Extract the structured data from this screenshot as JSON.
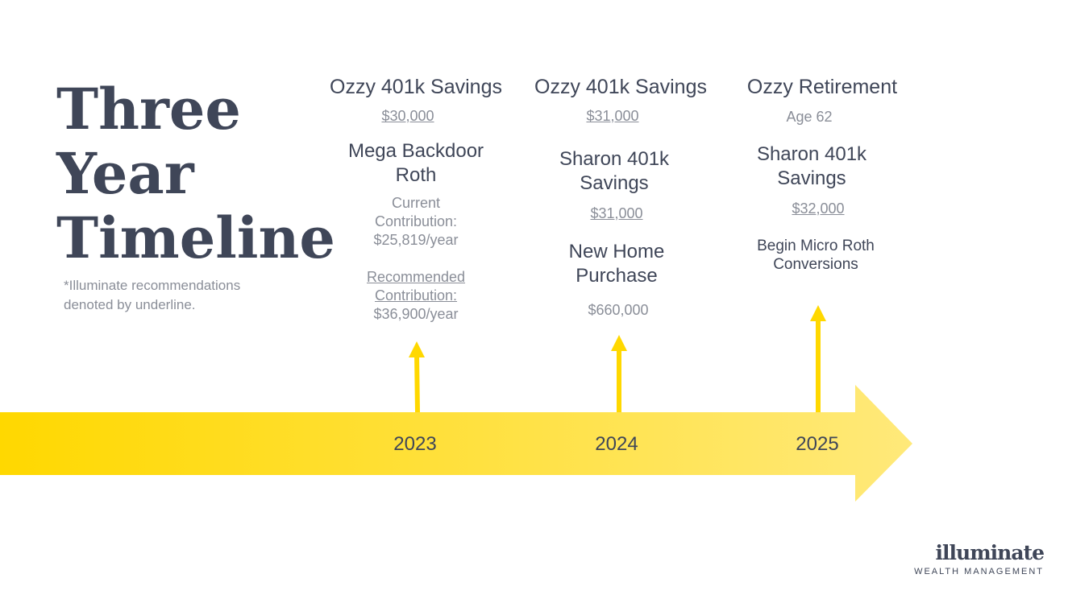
{
  "title": [
    "Three",
    "Year",
    "Timeline"
  ],
  "note": "*Illuminate recommendations denoted by underline.",
  "colors": {
    "accent": "#FFD800",
    "text": "#3F4658",
    "muted": "#8A8E98"
  },
  "columns": [
    {
      "year": "2023",
      "top_heading": "Ozzy 401k Savings",
      "top_value": "$30,000",
      "mid_heading": "Mega Backdoor Roth",
      "current_label": "Current Contribution:",
      "current_value": "$25,819/year",
      "recommended_label": "Recommended Contribution:",
      "recommended_value": "$36,900/year"
    },
    {
      "year": "2024",
      "top_heading": "Ozzy 401k Savings",
      "top_value": "$31,000",
      "mid_heading": "Sharon 401k Savings",
      "mid_value": "$31,000",
      "low_heading": "New Home Purchase",
      "low_value": "$660,000"
    },
    {
      "year": "2025",
      "top_heading": "Ozzy Retirement",
      "top_value": "Age 62",
      "mid_heading": "Sharon 401k Savings",
      "mid_value": "$32,000",
      "low_heading": "Begin Micro Roth Conversions"
    }
  ],
  "logo": {
    "name": "illuminate",
    "subtitle": "WEALTH MANAGEMENT"
  }
}
